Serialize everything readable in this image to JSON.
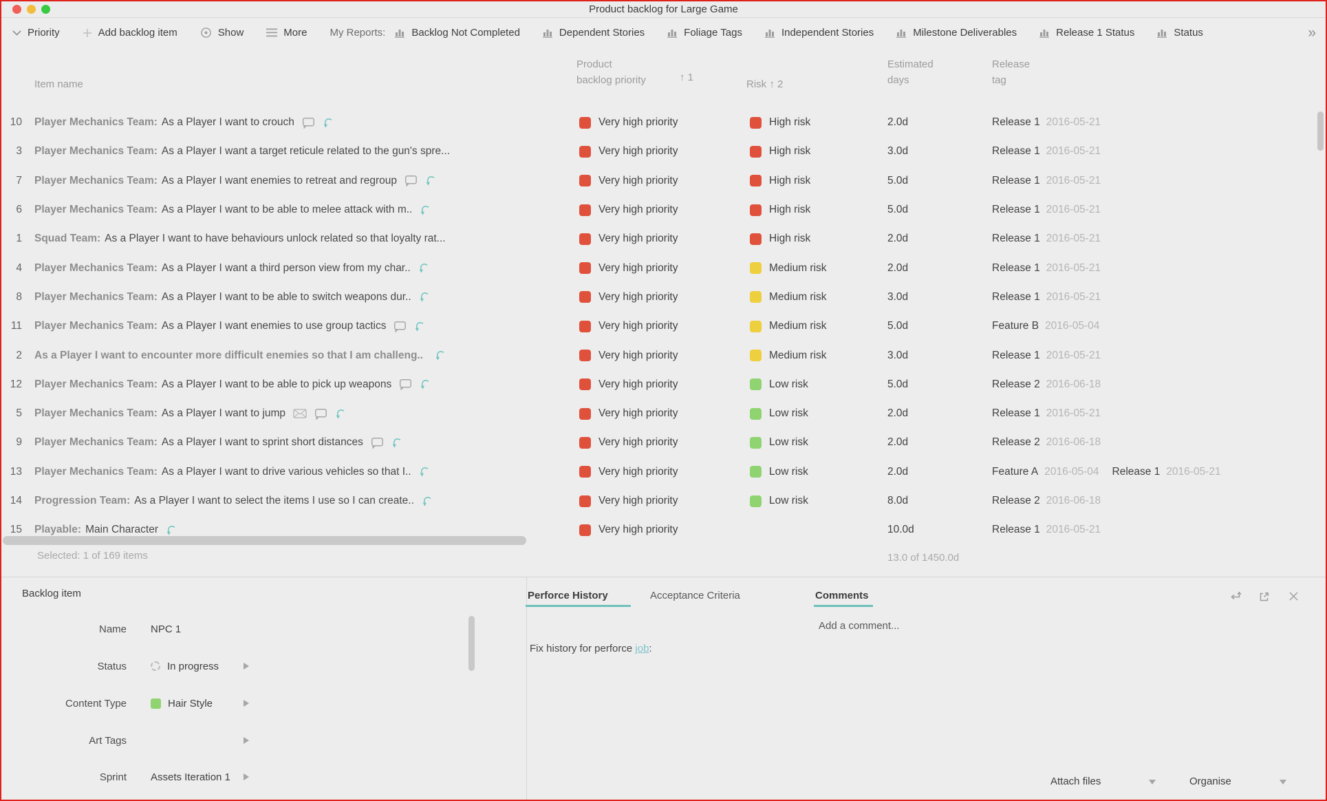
{
  "window": {
    "title": "Product backlog for Large Game"
  },
  "toolbar": {
    "priority_label": "Priority",
    "add_label": "Add backlog item",
    "show_label": "Show",
    "more_label": "More",
    "my_reports_label": "My Reports:",
    "reports": [
      "Backlog Not Completed",
      "Dependent Stories",
      "Foliage Tags",
      "Independent Stories",
      "Milestone Deliverables",
      "Release 1 Status",
      "Status"
    ],
    "overflow_glyph": "»"
  },
  "table": {
    "header": {
      "item": "Item name",
      "priority_line1": "Product",
      "priority_line2": "backlog priority",
      "priority_sort": "1",
      "risk_label": "Risk",
      "risk_sort": "2",
      "days_line1": "Estimated",
      "days_line2": "days",
      "release_line1": "Release",
      "release_line2": "tag",
      "sort_arrow": "↑"
    },
    "rows": [
      {
        "num": "10",
        "prefix": "Player Mechanics Team:",
        "text": "As a Player I want to crouch",
        "icons": [
          "note",
          "arrow"
        ],
        "priority": "Very high priority",
        "priority_color": "red",
        "risk": "High risk",
        "risk_color": "red",
        "days": "2.0d",
        "releases": [
          {
            "name": "Release 1",
            "date": "2016-05-21"
          }
        ]
      },
      {
        "num": "3",
        "prefix": "Player Mechanics Team:",
        "text": "As a Player I want a target reticule related to the gun's spre...",
        "icons": [],
        "priority": "Very high priority",
        "priority_color": "red",
        "risk": "High risk",
        "risk_color": "red",
        "days": "3.0d",
        "releases": [
          {
            "name": "Release 1",
            "date": "2016-05-21"
          }
        ]
      },
      {
        "num": "7",
        "prefix": "Player Mechanics Team:",
        "text": "As a Player I want enemies to retreat and regroup",
        "icons": [
          "note",
          "arrow"
        ],
        "priority": "Very high priority",
        "priority_color": "red",
        "risk": "High risk",
        "risk_color": "red",
        "days": "5.0d",
        "releases": [
          {
            "name": "Release 1",
            "date": "2016-05-21"
          }
        ]
      },
      {
        "num": "6",
        "prefix": "Player Mechanics Team:",
        "text": "As a Player I want to be able to melee attack with m..",
        "icons": [
          "arrow"
        ],
        "priority": "Very high priority",
        "priority_color": "red",
        "risk": "High risk",
        "risk_color": "red",
        "days": "5.0d",
        "releases": [
          {
            "name": "Release 1",
            "date": "2016-05-21"
          }
        ]
      },
      {
        "num": "1",
        "prefix": "Squad Team:",
        "text": "As a Player I want to have behaviours unlock related so that loyalty rat...",
        "icons": [],
        "priority": "Very high priority",
        "priority_color": "red",
        "risk": "High risk",
        "risk_color": "red",
        "days": "2.0d",
        "releases": [
          {
            "name": "Release 1",
            "date": "2016-05-21"
          }
        ]
      },
      {
        "num": "4",
        "prefix": "Player Mechanics Team:",
        "text": "As a Player I want a third person view from my char..",
        "icons": [
          "arrow"
        ],
        "priority": "Very high priority",
        "priority_color": "red",
        "risk": "Medium risk",
        "risk_color": "yellow",
        "days": "2.0d",
        "releases": [
          {
            "name": "Release 1",
            "date": "2016-05-21"
          }
        ]
      },
      {
        "num": "8",
        "prefix": "Player Mechanics Team:",
        "text": "As a Player I want to be able to switch weapons dur..",
        "icons": [
          "arrow"
        ],
        "priority": "Very high priority",
        "priority_color": "red",
        "risk": "Medium risk",
        "risk_color": "yellow",
        "days": "3.0d",
        "releases": [
          {
            "name": "Release 1",
            "date": "2016-05-21"
          }
        ]
      },
      {
        "num": "11",
        "prefix": "Player Mechanics Team:",
        "text": "As a Player I want enemies to use group tactics",
        "icons": [
          "note",
          "arrow"
        ],
        "priority": "Very high priority",
        "priority_color": "red",
        "risk": "Medium risk",
        "risk_color": "yellow",
        "days": "5.0d",
        "releases": [
          {
            "name": "Feature B",
            "date": "2016-05-04"
          }
        ]
      },
      {
        "num": "2",
        "prefix": "As a Player I want to encounter more difficult enemies so that I am challeng..",
        "text": "",
        "icons": [
          "arrow"
        ],
        "priority": "Very high priority",
        "priority_color": "red",
        "risk": "Medium risk",
        "risk_color": "yellow",
        "days": "3.0d",
        "releases": [
          {
            "name": "Release 1",
            "date": "2016-05-21"
          }
        ]
      },
      {
        "num": "12",
        "prefix": "Player Mechanics Team:",
        "text": "As a Player I want to be able to pick up weapons",
        "icons": [
          "note",
          "arrow"
        ],
        "priority": "Very high priority",
        "priority_color": "red",
        "risk": "Low risk",
        "risk_color": "green",
        "days": "5.0d",
        "releases": [
          {
            "name": "Release 2",
            "date": "2016-06-18"
          }
        ]
      },
      {
        "num": "5",
        "prefix": "Player Mechanics Team:",
        "text": "As a Player I want to jump",
        "icons": [
          "envelope",
          "note",
          "arrow"
        ],
        "priority": "Very high priority",
        "priority_color": "red",
        "risk": "Low risk",
        "risk_color": "green",
        "days": "2.0d",
        "releases": [
          {
            "name": "Release 1",
            "date": "2016-05-21"
          }
        ]
      },
      {
        "num": "9",
        "prefix": "Player Mechanics Team:",
        "text": "As a Player I want to sprint short distances",
        "icons": [
          "note",
          "arrow"
        ],
        "priority": "Very high priority",
        "priority_color": "red",
        "risk": "Low risk",
        "risk_color": "green",
        "days": "2.0d",
        "releases": [
          {
            "name": "Release 2",
            "date": "2016-06-18"
          }
        ]
      },
      {
        "num": "13",
        "prefix": "Player Mechanics Team:",
        "text": "As a Player I want to drive various vehicles so that I..",
        "icons": [
          "arrow"
        ],
        "priority": "Very high priority",
        "priority_color": "red",
        "risk": "Low risk",
        "risk_color": "green",
        "days": "2.0d",
        "releases": [
          {
            "name": "Feature A",
            "date": "2016-05-04"
          },
          {
            "name": "Release 1",
            "date": "2016-05-21"
          }
        ]
      },
      {
        "num": "14",
        "prefix": "Progression Team:",
        "text": "As a Player I want to select the items I use so I can create..",
        "icons": [
          "arrow"
        ],
        "priority": "Very high priority",
        "priority_color": "red",
        "risk": "Low risk",
        "risk_color": "green",
        "days": "8.0d",
        "releases": [
          {
            "name": "Release 2",
            "date": "2016-06-18"
          }
        ]
      },
      {
        "num": "15",
        "prefix": "Playable:",
        "text": "Main Character",
        "icons": [
          "arrow"
        ],
        "priority": "Very high priority",
        "priority_color": "red",
        "risk": "",
        "risk_color": "",
        "days": "10.0d",
        "releases": [
          {
            "name": "Release 1",
            "date": "2016-05-21"
          }
        ]
      }
    ],
    "selected_summary": "Selected: 1 of 169 items",
    "days_total": "13.0 of 1450.0d"
  },
  "detail": {
    "title": "Backlog item",
    "fields": [
      {
        "label": "Name",
        "value": "NPC 1"
      },
      {
        "label": "Status",
        "value": "In progress"
      },
      {
        "label": "Content Type",
        "value": "Hair Style"
      },
      {
        "label": "Art Tags",
        "value": ""
      },
      {
        "label": "Sprint",
        "value": "Assets Iteration 1"
      }
    ]
  },
  "panel": {
    "tabs": [
      "Perforce History",
      "Acceptance Criteria"
    ],
    "active_tab": "Perforce History",
    "comments_label": "Comments",
    "add_comment": "Add a comment...",
    "history_prefix": "Fix history for perforce ",
    "history_link": "job",
    "history_colon": ":",
    "attach_label": "Attach files",
    "organise_label": "Organise"
  },
  "colors": {
    "red": "#e0513c",
    "yellow": "#eecf3d",
    "green": "#8fd470",
    "teal": "#6ec1bb",
    "link": "#7ec3cd"
  },
  "icon_names": [
    "chevron-down-icon",
    "plus-icon",
    "show-icon",
    "hamburger-icon",
    "bar-chart-icon",
    "overflow-chevrons-icon",
    "note-icon",
    "envelope-icon",
    "linked-arrow-icon",
    "spinner-icon",
    "expand-arrow-icon",
    "dock-arrow-icon",
    "external-link-icon",
    "close-icon",
    "dropdown-chevron-icon"
  ]
}
